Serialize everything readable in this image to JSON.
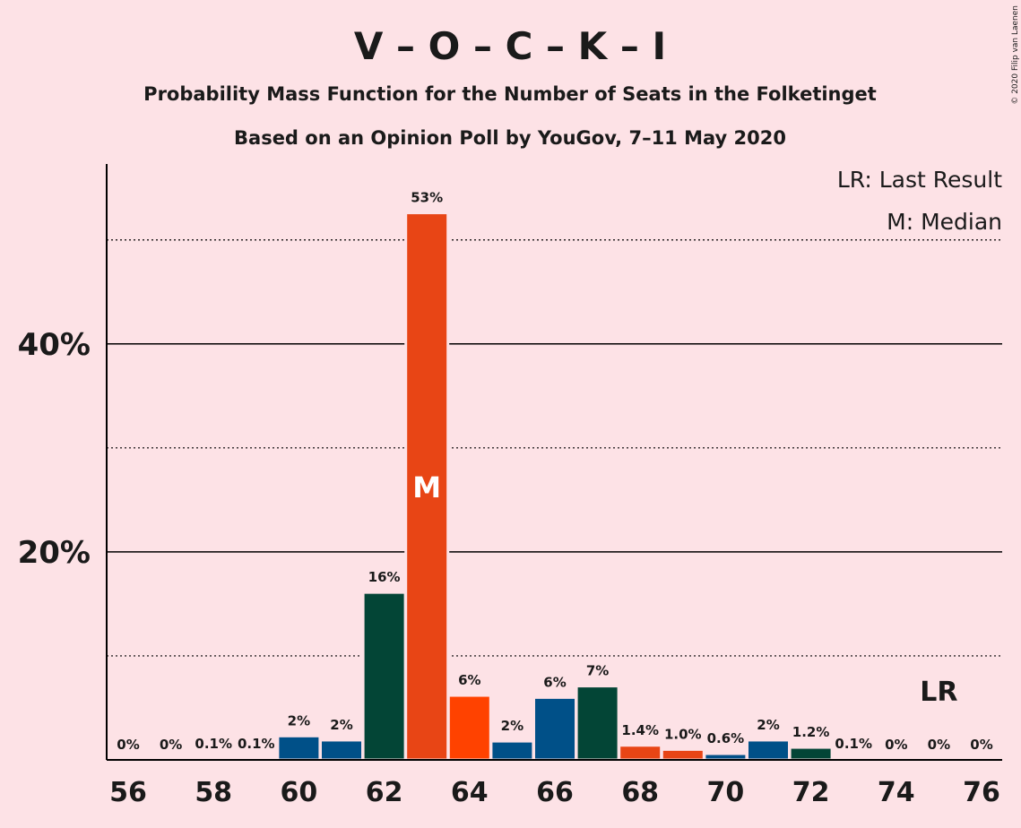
{
  "chart_data": {
    "type": "bar",
    "title": "V – O – C – K – I",
    "subtitle": "Probability Mass Function for the Number of Seats in the Folketinget",
    "subtitle2": "Based on an Opinion Poll by YouGov, 7–11 May 2020",
    "copyright": "© 2020 Filip van Laenen",
    "x": [
      56,
      57,
      58,
      59,
      60,
      61,
      62,
      63,
      64,
      65,
      66,
      67,
      68,
      69,
      70,
      71,
      72,
      73,
      74,
      75,
      76
    ],
    "values": [
      0,
      0,
      0.1,
      0.1,
      2.3,
      1.9,
      16.1,
      52.6,
      6.2,
      1.8,
      6,
      7.1,
      1.4,
      1.0,
      0.6,
      1.9,
      1.2,
      0.1,
      0,
      0,
      0
    ],
    "value_labels": [
      "0%",
      "0%",
      "0.1%",
      "0.1%",
      "2%",
      "2%",
      "16%",
      "53%",
      "6%",
      "2%",
      "6%",
      "7%",
      "1.4%",
      "1.0%",
      "0.6%",
      "2%",
      "1.2%",
      "0.1%",
      "0%",
      "0%",
      "0%"
    ],
    "colors": [
      "#005088",
      "#005088",
      "#005088",
      "#005088",
      "#005088",
      "#005088",
      "#034536",
      "#e84515",
      "#ff4200",
      "#005088",
      "#005088",
      "#034536",
      "#e84515",
      "#e84515",
      "#005088",
      "#005088",
      "#034536",
      "#005088",
      "#005088",
      "#005088",
      "#005088"
    ],
    "xlim": [
      55.5,
      76.5
    ],
    "xticks": [
      56,
      58,
      60,
      62,
      64,
      66,
      68,
      70,
      72,
      74,
      76
    ],
    "ylim": [
      0,
      57.3
    ],
    "yticks": [
      {
        "value": 20,
        "label": "20%"
      },
      {
        "value": 40,
        "label": "40%"
      }
    ],
    "minor_grid": [
      10,
      30,
      50
    ],
    "median": 63,
    "median_label": "M",
    "last_result": 75,
    "last_result_label": "LR",
    "legend": [
      "LR: Last Result",
      "M: Median"
    ],
    "legend_position": "upper right"
  }
}
